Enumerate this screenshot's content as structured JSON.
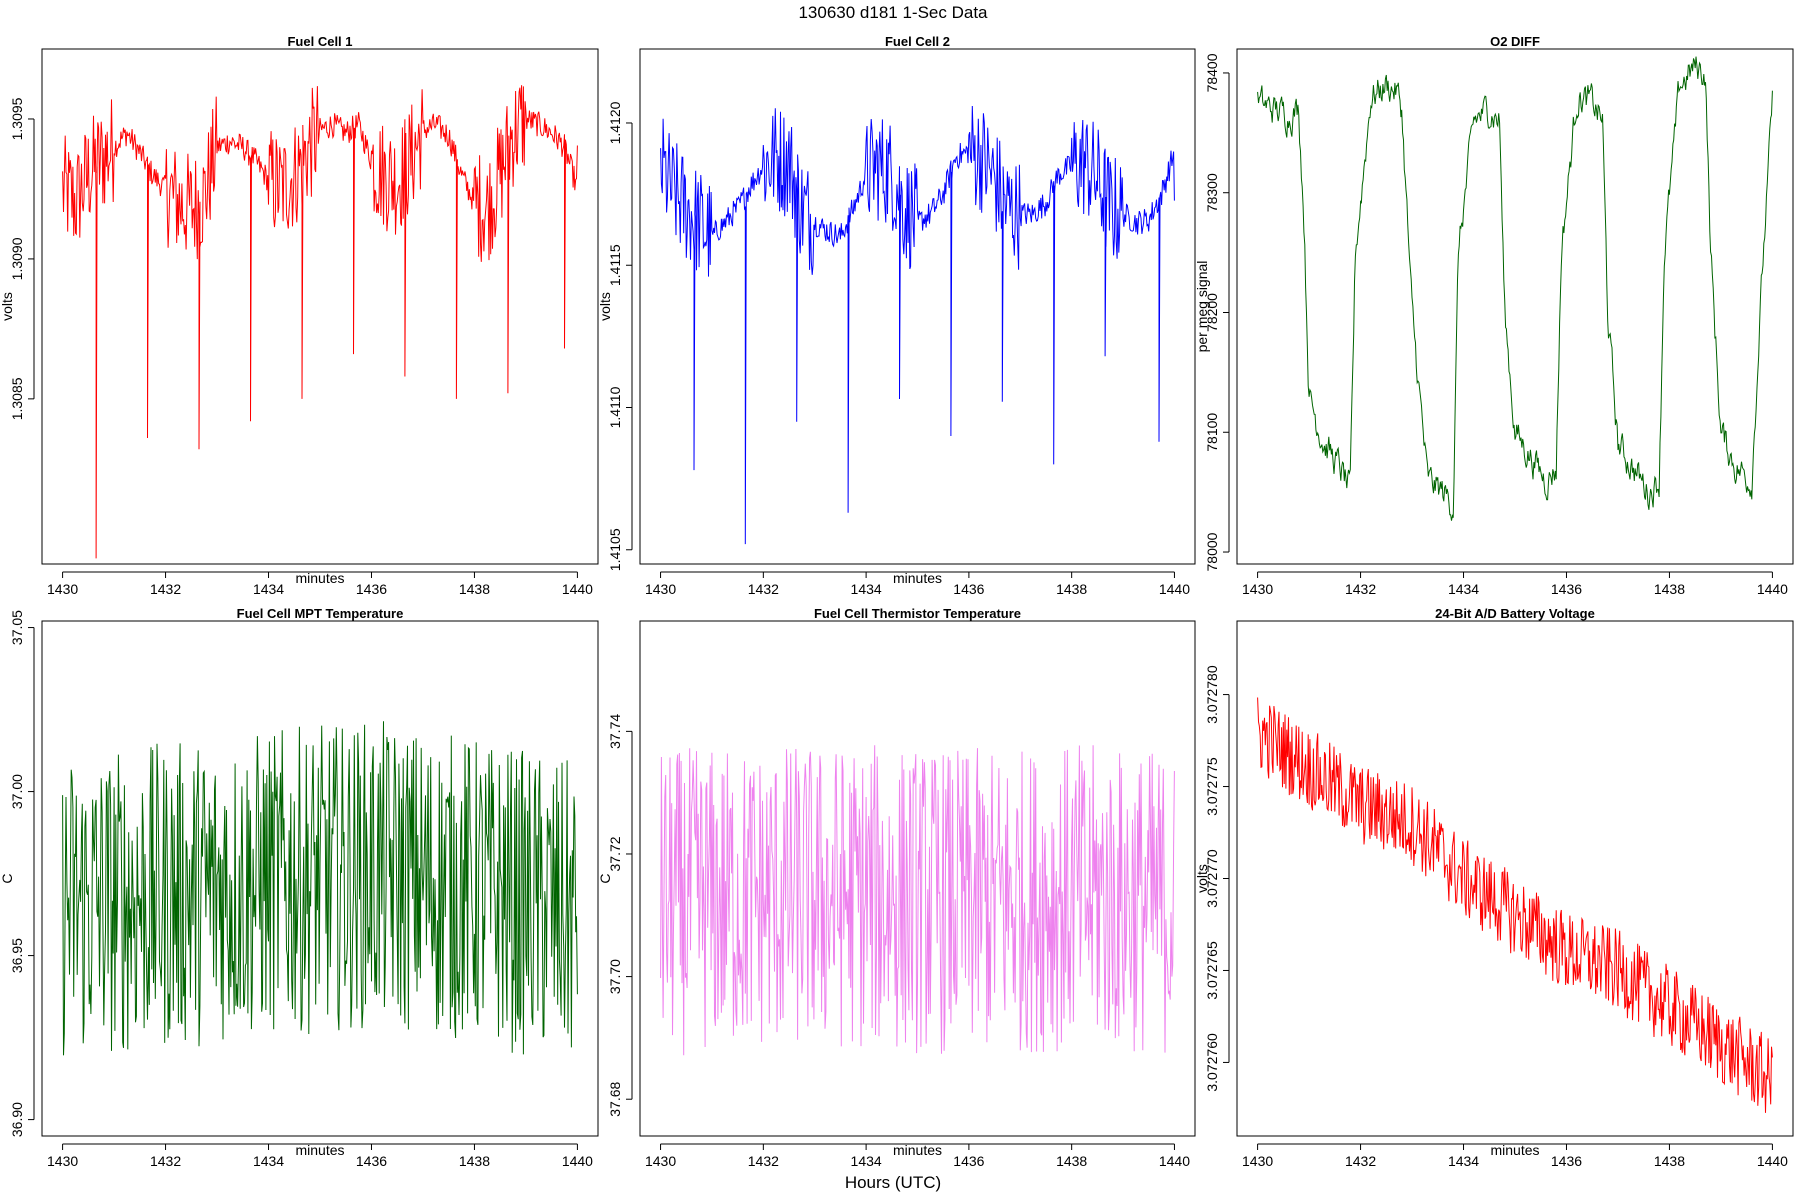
{
  "figure": {
    "title": "130630   d181   1-Sec Data",
    "xcaption": "Hours (UTC)"
  },
  "chart_data": [
    {
      "type": "line",
      "title": "Fuel Cell 1",
      "xlabel": "minutes",
      "ylabel": "volts",
      "color": "#ff0000",
      "xlim": [
        1429.6,
        1440.4
      ],
      "ylim": [
        1.30791,
        1.30975
      ],
      "xticks": [
        1430,
        1432,
        1434,
        1436,
        1438,
        1440
      ],
      "yticks": [
        1.3085,
        1.309,
        1.3095
      ],
      "yticklabels": [
        "1.3085",
        "1.3090",
        "1.3095"
      ],
      "x": [
        1430.0,
        1430.25,
        1430.5,
        1430.75,
        1431.0,
        1431.25,
        1431.5,
        1431.75,
        1432.0,
        1432.25,
        1432.5,
        1432.75,
        1433.0,
        1433.25,
        1433.5,
        1433.75,
        1434.0,
        1434.25,
        1434.5,
        1434.75,
        1435.0,
        1435.25,
        1435.5,
        1435.75,
        1436.0,
        1436.25,
        1436.5,
        1436.75,
        1437.0,
        1437.25,
        1437.5,
        1437.75,
        1438.0,
        1438.25,
        1438.5,
        1438.75,
        1439.0,
        1439.25,
        1439.5,
        1439.75,
        1440.0
      ],
      "values": [
        1.30925,
        1.3092,
        1.3093,
        1.30935,
        1.3094,
        1.30945,
        1.30938,
        1.3093,
        1.30925,
        1.3092,
        1.30918,
        1.30922,
        1.3094,
        1.30942,
        1.3094,
        1.30935,
        1.30928,
        1.30925,
        1.3093,
        1.30938,
        1.30946,
        1.30948,
        1.30945,
        1.30948,
        1.30935,
        1.3093,
        1.30928,
        1.30935,
        1.30946,
        1.30948,
        1.30944,
        1.3093,
        1.3092,
        1.30918,
        1.3093,
        1.30945,
        1.3095,
        1.30948,
        1.30945,
        1.3094,
        1.30925
      ],
      "spikes": [
        {
          "x": 1430.65,
          "y": 1.30793
        },
        {
          "x": 1431.65,
          "y": 1.30836
        },
        {
          "x": 1432.65,
          "y": 1.30832
        },
        {
          "x": 1433.65,
          "y": 1.30842
        },
        {
          "x": 1434.65,
          "y": 1.3085
        },
        {
          "x": 1435.65,
          "y": 1.30866
        },
        {
          "x": 1436.65,
          "y": 1.30858
        },
        {
          "x": 1437.65,
          "y": 1.3085
        },
        {
          "x": 1438.65,
          "y": 1.30852
        },
        {
          "x": 1439.75,
          "y": 1.30868
        }
      ]
    },
    {
      "type": "line",
      "title": "Fuel Cell 2",
      "xlabel": "minutes",
      "ylabel": "volts",
      "color": "#0000ff",
      "xlim": [
        1429.6,
        1440.4
      ],
      "ylim": [
        1.41045,
        1.41226
      ],
      "xticks": [
        1430,
        1432,
        1434,
        1436,
        1438,
        1440
      ],
      "yticks": [
        1.4105,
        1.411,
        1.4115,
        1.412
      ],
      "yticklabels": [
        "1.4105",
        "1.4110",
        "1.4115",
        "1.4120"
      ],
      "x": [
        1430.0,
        1430.25,
        1430.5,
        1430.75,
        1431.0,
        1431.25,
        1431.5,
        1431.75,
        1432.0,
        1432.25,
        1432.5,
        1432.75,
        1433.0,
        1433.25,
        1433.5,
        1433.75,
        1434.0,
        1434.25,
        1434.5,
        1434.75,
        1435.0,
        1435.25,
        1435.5,
        1435.75,
        1436.0,
        1436.25,
        1436.5,
        1436.75,
        1437.0,
        1437.25,
        1437.5,
        1437.75,
        1438.0,
        1438.25,
        1438.5,
        1438.75,
        1439.0,
        1439.25,
        1439.5,
        1439.75,
        1440.0
      ],
      "values": [
        1.41185,
        1.41175,
        1.4117,
        1.41165,
        1.4116,
        1.41165,
        1.4117,
        1.41178,
        1.41185,
        1.41188,
        1.41186,
        1.4117,
        1.41165,
        1.41162,
        1.4116,
        1.4117,
        1.41182,
        1.41185,
        1.41182,
        1.4117,
        1.41165,
        1.41168,
        1.41175,
        1.41188,
        1.4119,
        1.41188,
        1.4118,
        1.4117,
        1.41168,
        1.41168,
        1.41172,
        1.41182,
        1.41185,
        1.41186,
        1.4118,
        1.4117,
        1.41168,
        1.41165,
        1.41166,
        1.41175,
        1.4119
      ],
      "spikes": [
        {
          "x": 1430.65,
          "y": 1.41078
        },
        {
          "x": 1431.65,
          "y": 1.41052
        },
        {
          "x": 1432.65,
          "y": 1.41095
        },
        {
          "x": 1433.65,
          "y": 1.41063
        },
        {
          "x": 1434.65,
          "y": 1.41103
        },
        {
          "x": 1435.65,
          "y": 1.4109
        },
        {
          "x": 1436.65,
          "y": 1.41102
        },
        {
          "x": 1437.65,
          "y": 1.4108
        },
        {
          "x": 1438.65,
          "y": 1.41118
        },
        {
          "x": 1439.7,
          "y": 1.41088
        }
      ]
    },
    {
      "type": "line",
      "title": "O2 DIFF",
      "xlabel": "",
      "ylabel": "per meg signal",
      "color": "#006400",
      "xlim": [
        1429.6,
        1440.4
      ],
      "ylim": [
        77990,
        78420
      ],
      "xticks": [
        1430,
        1432,
        1434,
        1436,
        1438,
        1440
      ],
      "yticks": [
        78000,
        78100,
        78200,
        78300,
        78400
      ],
      "yticklabels": [
        "78000",
        "78100",
        "78200",
        "78300",
        "78400"
      ],
      "x": [
        1430.0,
        1430.3,
        1430.6,
        1430.8,
        1430.9,
        1431.0,
        1431.3,
        1431.6,
        1431.8,
        1431.9,
        1432.2,
        1432.5,
        1432.7,
        1432.8,
        1433.0,
        1433.3,
        1433.6,
        1433.8,
        1433.9,
        1434.2,
        1434.5,
        1434.7,
        1434.8,
        1435.0,
        1435.3,
        1435.6,
        1435.8,
        1435.9,
        1436.2,
        1436.5,
        1436.7,
        1436.8,
        1437.0,
        1437.3,
        1437.6,
        1437.8,
        1437.9,
        1438.2,
        1438.5,
        1438.7,
        1438.8,
        1439.0,
        1439.3,
        1439.6,
        1439.8,
        1440.0
      ],
      "values": [
        78375,
        78370,
        78365,
        78370,
        78280,
        78130,
        78090,
        78070,
        78050,
        78250,
        78380,
        78390,
        78385,
        78370,
        78200,
        78060,
        78050,
        78040,
        78250,
        78360,
        78370,
        78360,
        78200,
        78100,
        78080,
        78060,
        78070,
        78250,
        78380,
        78375,
        78360,
        78200,
        78090,
        78070,
        78050,
        78060,
        78250,
        78390,
        78405,
        78400,
        78250,
        78100,
        78070,
        78060,
        78230,
        78375
      ]
    },
    {
      "type": "line",
      "title": "Fuel Cell MPT Temperature",
      "xlabel": "minutes",
      "ylabel": "C",
      "color": "#006400",
      "xlim": [
        1429.6,
        1440.4
      ],
      "ylim": [
        36.895,
        37.052
      ],
      "xticks": [
        1430,
        1432,
        1434,
        1436,
        1438,
        1440
      ],
      "yticks": [
        36.9,
        36.95,
        37.0,
        37.05
      ],
      "yticklabels": [
        "36.90",
        "36.95",
        "37.00",
        "37.05"
      ],
      "x": [
        1430.0,
        1432.0,
        1434.0,
        1436.0,
        1438.0,
        1440.0
      ],
      "values": [
        36.965,
        36.968,
        36.972,
        36.975,
        36.97,
        36.962
      ]
    },
    {
      "type": "line",
      "title": "Fuel Cell Thermistor Temperature",
      "xlabel": "minutes",
      "ylabel": "C",
      "color": "#ee82ee",
      "xlim": [
        1429.6,
        1440.4
      ],
      "ylim": [
        37.674,
        37.758
      ],
      "xticks": [
        1430,
        1432,
        1434,
        1436,
        1438,
        1440
      ],
      "yticks": [
        37.68,
        37.7,
        37.72,
        37.74
      ],
      "yticklabels": [
        "37.68",
        "37.70",
        "37.72",
        "37.74"
      ],
      "x": [
        1430.0,
        1432.0,
        1434.0,
        1436.0,
        1438.0,
        1440.0
      ],
      "values": [
        37.712,
        37.713,
        37.713,
        37.712,
        37.713,
        37.712
      ]
    },
    {
      "type": "line",
      "title": "24-Bit A/D Battery Voltage",
      "xlabel": "minutes",
      "ylabel": "volts",
      "color": "#ff0000",
      "xlim": [
        1429.6,
        1440.4
      ],
      "ylim": [
        3.072756,
        3.072784
      ],
      "xticks": [
        1430,
        1432,
        1434,
        1436,
        1438,
        1440
      ],
      "yticks": [
        3.07276,
        3.072765,
        3.07277,
        3.072775,
        3.07278
      ],
      "yticklabels": [
        "3.072760",
        "3.072765",
        "3.072770",
        "3.072775",
        "3.072780"
      ],
      "x": [
        1430.0,
        1431.0,
        1432.0,
        1433.0,
        1434.0,
        1435.0,
        1436.0,
        1437.0,
        1438.0,
        1439.0,
        1440.0
      ],
      "values": [
        3.072778,
        3.072776,
        3.072774,
        3.072773,
        3.07277,
        3.072768,
        3.072766,
        3.072765,
        3.072763,
        3.072761,
        3.072759
      ]
    }
  ]
}
